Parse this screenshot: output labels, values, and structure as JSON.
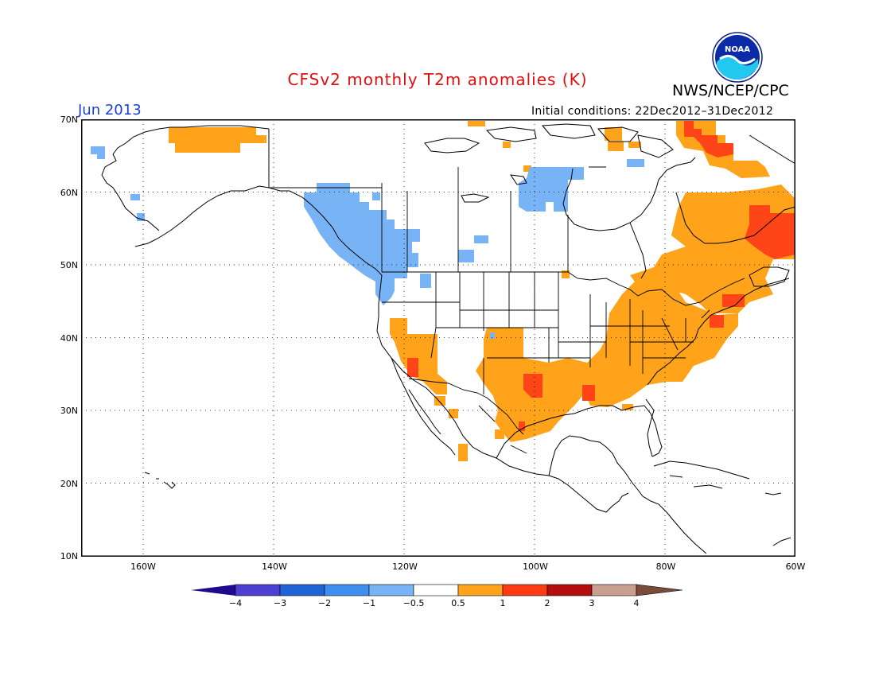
{
  "header": {
    "title": "CFSv2 monthly T2m anomalies (K)",
    "agency": "NWS/NCEP/CPC",
    "logo_text": "NOAA",
    "month": "Jun 2013",
    "initial_conditions": "Initial conditions: 22Dec2012–31Dec2012"
  },
  "axes": {
    "lat_labels": [
      "70N",
      "60N",
      "50N",
      "40N",
      "30N",
      "20N",
      "10N"
    ],
    "lon_labels": [
      "160W",
      "140W",
      "120W",
      "100W",
      "80W",
      "60W"
    ],
    "lon_range": [
      -172,
      -60
    ],
    "lat_range": [
      10,
      70
    ],
    "gridlines": "dotted"
  },
  "colorbar": {
    "tick_labels": [
      "−4",
      "−3",
      "−2",
      "−1",
      "−0.5",
      "0.5",
      "1",
      "2",
      "3",
      "4"
    ],
    "colors": [
      "#1f0a8c",
      "#4c3fd1",
      "#1f63d6",
      "#3f8ff0",
      "#78b4f5",
      "#ffffff",
      "#ffa31a",
      "#ff3b14",
      "#b30d0d",
      "#c9a08f",
      "#7a4a3a"
    ]
  },
  "anomaly_colors": {
    "orange": "#ffa31a",
    "red": "#ff4517",
    "light_blue": "#78b4f5"
  }
}
